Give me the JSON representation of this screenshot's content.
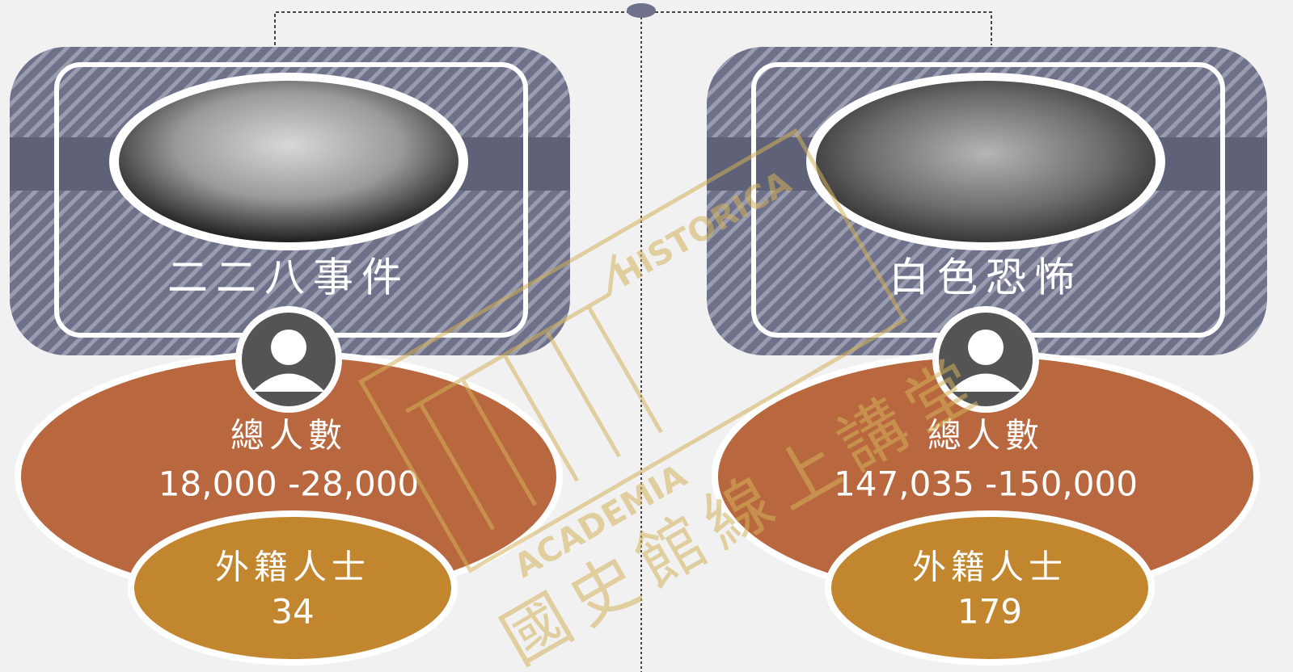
{
  "panels": [
    {
      "title": "二二八事件",
      "total_label": "總人數",
      "total": "18,000 -28,000",
      "foreign_label": "外籍人士",
      "foreign": "34"
    },
    {
      "title": "白色恐怖",
      "total_label": "總人數",
      "total": "147,035 -150,000",
      "foreign_label": "外籍人士",
      "foreign": "179"
    }
  ],
  "watermark": {
    "latin_top": "HISTORICA",
    "latin_bottom": "ACADEMIA",
    "chinese": "國史館線上講堂"
  }
}
